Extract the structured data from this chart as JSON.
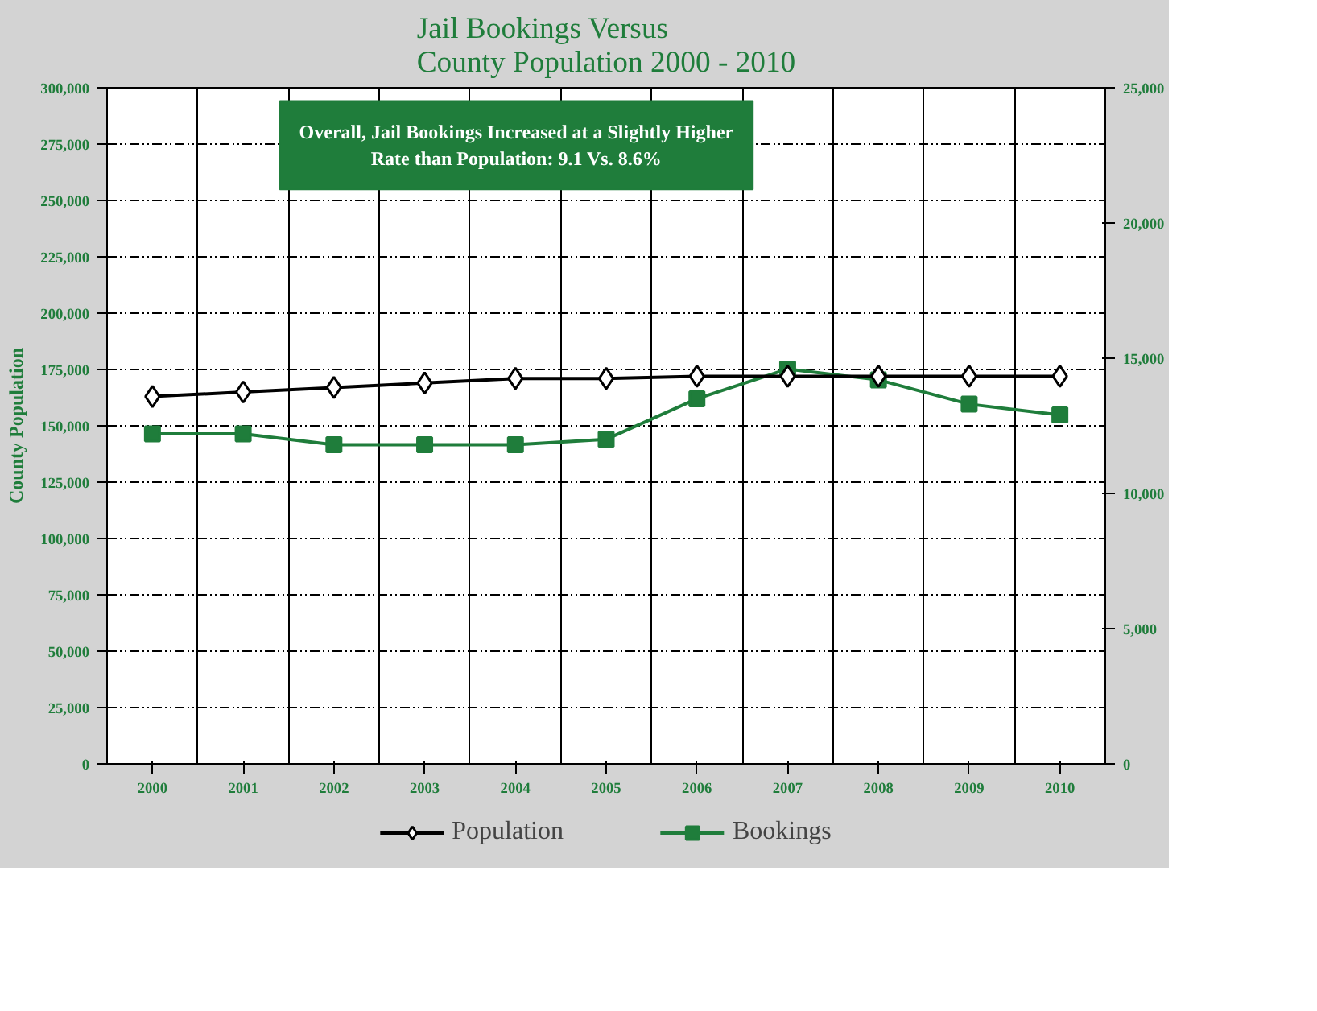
{
  "chart_data": {
    "type": "line",
    "title": "Jail Bookings Versus\nCounty Population 2000 - 2010",
    "ylabel": "County Population",
    "categories": [
      "2000",
      "2001",
      "2002",
      "2003",
      "2004",
      "2005",
      "2006",
      "2007",
      "2008",
      "2009",
      "2010"
    ],
    "series": [
      {
        "name": "Population",
        "color": "#000000",
        "marker": "diamond",
        "values": [
          163000,
          165000,
          167000,
          169000,
          171000,
          171000,
          172000,
          172000,
          172000,
          172000,
          172000
        ]
      },
      {
        "name": "Bookings",
        "color": "#1f7d3b",
        "marker": "square",
        "axis": "y2",
        "values": [
          12200,
          12200,
          11800,
          11800,
          11800,
          12000,
          13500,
          14600,
          14200,
          13300,
          12900
        ]
      }
    ],
    "ylim": [
      0,
      300000
    ],
    "yticks": [
      {
        "value": 0,
        "label": "0"
      },
      {
        "value": 25000,
        "label": "25,000"
      },
      {
        "value": 50000,
        "label": "50,000"
      },
      {
        "value": 75000,
        "label": "75,000"
      },
      {
        "value": 100000,
        "label": "100,000"
      },
      {
        "value": 125000,
        "label": "125,000"
      },
      {
        "value": 150000,
        "label": "150,000"
      },
      {
        "value": 175000,
        "label": "175,000"
      },
      {
        "value": 200000,
        "label": "200,000"
      },
      {
        "value": 225000,
        "label": "225,000"
      },
      {
        "value": 250000,
        "label": "250,000"
      },
      {
        "value": 275000,
        "label": "275,000"
      },
      {
        "value": 300000,
        "label": "300,000"
      }
    ],
    "y2lim": [
      0,
      25000
    ],
    "y2ticks": [
      {
        "value": 0,
        "label": "0"
      },
      {
        "value": 5000,
        "label": "5,000"
      },
      {
        "value": 10000,
        "label": "10,000"
      },
      {
        "value": 15000,
        "label": "15,000"
      },
      {
        "value": 20000,
        "label": "20,000"
      },
      {
        "value": 25000,
        "label": "25,000"
      }
    ],
    "grid": true,
    "legend": "bottom",
    "annotations": [
      "Overall, Jail Bookings Increased at a Slightly Higher\nRate than Population: 9.1 Vs. 8.6%"
    ]
  }
}
